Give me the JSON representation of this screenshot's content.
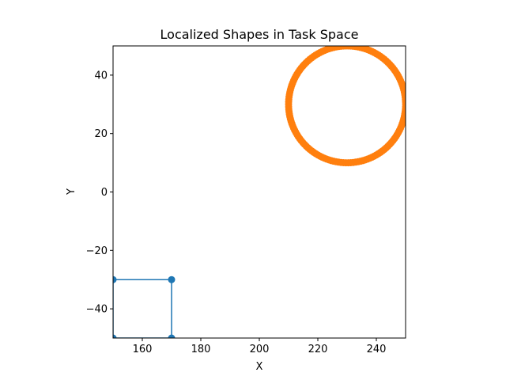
{
  "chart_data": {
    "type": "scatter",
    "title": "Localized Shapes in Task Space",
    "xlabel": "X",
    "ylabel": "Y",
    "xlim": [
      150,
      250
    ],
    "ylim": [
      -50,
      50
    ],
    "xticks": [
      160,
      180,
      200,
      220,
      240
    ],
    "xtick_labels": [
      "160",
      "180",
      "200",
      "220",
      "240"
    ],
    "yticks": [
      -40,
      -20,
      0,
      20,
      40
    ],
    "ytick_labels": [
      "−40",
      "−20",
      "0",
      "20",
      "40"
    ],
    "grid": false,
    "aspect": "equal",
    "series": [
      {
        "kind": "polygon",
        "color": "#1f77b4",
        "points": [
          [
            150,
            -30
          ],
          [
            170,
            -30
          ],
          [
            170,
            -50
          ],
          [
            150,
            -50
          ]
        ],
        "closed": true,
        "markers": true
      },
      {
        "kind": "circle",
        "color": "#ff7f0e",
        "center": [
          230,
          30
        ],
        "radius": 20,
        "n_points": 150
      }
    ]
  }
}
